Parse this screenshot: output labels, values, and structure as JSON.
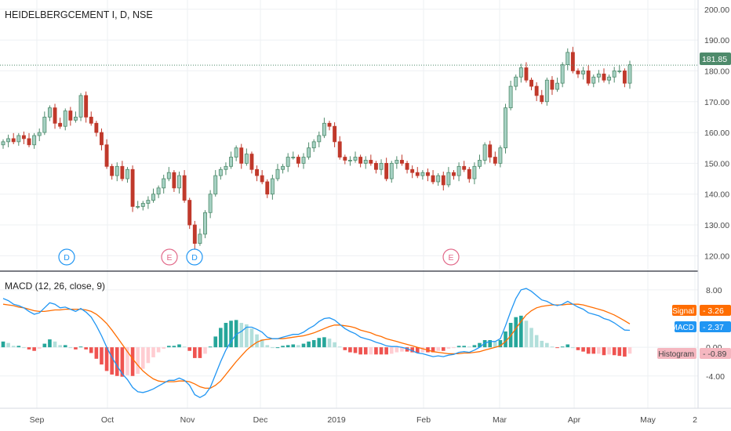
{
  "header": {
    "symbol_title": "HEIDELBERGCEMENT I, D, NSE"
  },
  "price_axis": {
    "ticks": [
      "200.00",
      "190.00",
      "180.00",
      "170.00",
      "160.00",
      "150.00",
      "140.00",
      "130.00",
      "120.00"
    ]
  },
  "macd_axis": {
    "ticks": [
      "8.00",
      "0.00",
      "-4.00"
    ]
  },
  "time_axis": {
    "ticks": [
      "Sep",
      "Oct",
      "Nov",
      "Dec",
      "2019",
      "Feb",
      "Mar",
      "Apr",
      "May",
      "2"
    ]
  },
  "price_tag": {
    "value": "181.85",
    "color": "#4e8a6b"
  },
  "event_markers": [
    {
      "letter": "D",
      "kind": "dividend",
      "color": "#2196f3"
    },
    {
      "letter": "E",
      "kind": "earnings",
      "color": "#e26a8a"
    },
    {
      "letter": "D",
      "kind": "dividend",
      "color": "#2196f3"
    },
    {
      "letter": "E",
      "kind": "earnings",
      "color": "#e26a8a"
    }
  ],
  "macd_panel": {
    "title": "MACD (12, 26, close, 9)",
    "legend": [
      {
        "label": "Signal",
        "value": "3.26",
        "color": "#ff6d00"
      },
      {
        "label": "MACD",
        "value": "2.37",
        "color": "#2196f3"
      },
      {
        "label": "Histogram",
        "value": "-0.89",
        "color": "#f5b7c0",
        "text_color": "#444444"
      }
    ]
  },
  "colors": {
    "up_candle": "#a6d1c3",
    "up_candle_border": "#4e8a6b",
    "down_candle": "#c0392b",
    "macd_line": "#2196f3",
    "signal_line": "#ff6d00",
    "hist_pos_strong": "#26a69a",
    "hist_pos_weak": "#b2dfdb",
    "hist_neg_strong": "#ef5350",
    "hist_neg_weak": "#ffcdd2",
    "grid": "#eef0f3"
  },
  "chart_data": [
    {
      "type": "candlestick",
      "title": "HEIDELBERGCEMENT I, D, NSE",
      "ylim": [
        115,
        203
      ],
      "x_ticks": [
        "Sep",
        "Oct",
        "Nov",
        "Dec",
        "2019",
        "Feb",
        "Mar",
        "Apr",
        "May",
        "2"
      ],
      "last_price": 181.85,
      "closes": [
        157,
        158,
        157,
        159,
        158,
        156,
        159,
        160,
        165,
        168,
        163,
        162,
        167,
        164,
        165,
        172,
        165,
        163,
        160,
        156,
        149,
        146,
        149,
        145,
        148,
        136,
        136,
        137,
        138,
        140,
        142,
        145,
        147,
        142,
        146,
        138,
        130,
        124,
        127,
        134,
        140,
        146,
        148,
        149,
        152,
        155,
        150,
        153,
        148,
        146,
        144,
        140,
        145,
        148,
        149,
        152,
        152,
        150,
        152,
        155,
        157,
        159,
        163,
        162,
        157,
        152,
        151,
        151,
        152,
        150,
        151,
        150,
        148,
        150,
        145,
        150,
        151,
        150,
        148,
        147,
        146,
        147,
        146,
        144,
        146,
        143,
        147,
        146,
        149,
        148,
        145,
        149,
        151,
        156,
        152,
        150,
        155,
        168,
        175,
        178,
        181,
        177,
        175,
        172,
        170,
        177,
        174,
        176,
        182,
        186,
        180,
        179,
        180,
        176,
        178,
        179,
        177,
        178,
        180,
        180,
        176,
        182
      ],
      "ohlc_sample_note": ""
    },
    {
      "type": "line",
      "title": "MACD (12, 26, close, 9)",
      "ylim": [
        -8.5,
        10.5
      ],
      "series": [
        {
          "name": "MACD",
          "color": "#2196f3",
          "values": [
            6.8,
            6.5,
            6.0,
            5.8,
            5.5,
            5.0,
            4.6,
            4.8,
            5.5,
            6.2,
            6.0,
            5.5,
            5.6,
            5.3,
            5.0,
            5.4,
            4.9,
            4.2,
            3.0,
            1.6,
            0.0,
            -1.4,
            -2.6,
            -3.7,
            -4.5,
            -5.6,
            -6.2,
            -6.3,
            -6.1,
            -5.8,
            -5.4,
            -5.0,
            -4.6,
            -4.6,
            -4.3,
            -4.6,
            -5.3,
            -6.6,
            -7.0,
            -6.6,
            -5.6,
            -3.8,
            -2.0,
            -0.4,
            0.8,
            1.8,
            2.2,
            2.8,
            2.8,
            2.5,
            2.1,
            1.4,
            1.2,
            1.2,
            1.4,
            1.6,
            1.8,
            1.8,
            2.1,
            2.6,
            3.0,
            3.6,
            4.0,
            4.1,
            3.8,
            3.2,
            2.6,
            2.2,
            1.9,
            1.4,
            1.2,
            1.0,
            0.7,
            0.5,
            0.2,
            0.1,
            0.1,
            0.0,
            -0.2,
            -0.5,
            -0.8,
            -0.9,
            -1.1,
            -1.3,
            -1.2,
            -1.3,
            -1.1,
            -1.0,
            -0.7,
            -0.6,
            -0.7,
            -0.4,
            0.0,
            0.6,
            0.8,
            0.8,
            1.2,
            3.0,
            5.0,
            6.8,
            8.0,
            8.2,
            7.8,
            7.2,
            6.6,
            6.4,
            6.0,
            5.8,
            6.0,
            6.4,
            6.0,
            5.6,
            5.3,
            4.8,
            4.6,
            4.4,
            4.0,
            3.8,
            3.4,
            2.9,
            2.4,
            2.37
          ]
        },
        {
          "name": "Signal",
          "color": "#ff6d00",
          "values": [
            6.0,
            5.9,
            5.8,
            5.6,
            5.5,
            5.3,
            5.1,
            5.0,
            5.0,
            5.1,
            5.2,
            5.2,
            5.3,
            5.3,
            5.3,
            5.3,
            5.2,
            5.0,
            4.6,
            4.0,
            3.3,
            2.4,
            1.4,
            0.4,
            -0.6,
            -1.6,
            -2.5,
            -3.3,
            -3.9,
            -4.4,
            -4.7,
            -4.8,
            -4.8,
            -4.8,
            -4.7,
            -4.7,
            -4.8,
            -5.1,
            -5.5,
            -5.7,
            -5.7,
            -5.3,
            -4.7,
            -3.8,
            -2.9,
            -2.0,
            -1.2,
            -0.4,
            0.2,
            0.7,
            1.0,
            1.1,
            1.2,
            1.2,
            1.2,
            1.3,
            1.4,
            1.5,
            1.6,
            1.8,
            2.0,
            2.3,
            2.6,
            2.9,
            3.1,
            3.1,
            3.0,
            2.9,
            2.7,
            2.4,
            2.2,
            2.0,
            1.7,
            1.5,
            1.2,
            1.0,
            0.8,
            0.6,
            0.4,
            0.2,
            0.0,
            -0.2,
            -0.4,
            -0.6,
            -0.7,
            -0.8,
            -0.9,
            -0.9,
            -0.9,
            -0.8,
            -0.8,
            -0.7,
            -0.6,
            -0.4,
            -0.2,
            0.0,
            0.2,
            0.8,
            1.6,
            2.6,
            3.6,
            4.5,
            5.1,
            5.5,
            5.7,
            5.8,
            5.9,
            5.9,
            5.9,
            6.0,
            6.0,
            6.0,
            5.9,
            5.7,
            5.5,
            5.3,
            5.1,
            4.8,
            4.5,
            4.1,
            3.7,
            3.26
          ]
        }
      ]
    }
  ]
}
